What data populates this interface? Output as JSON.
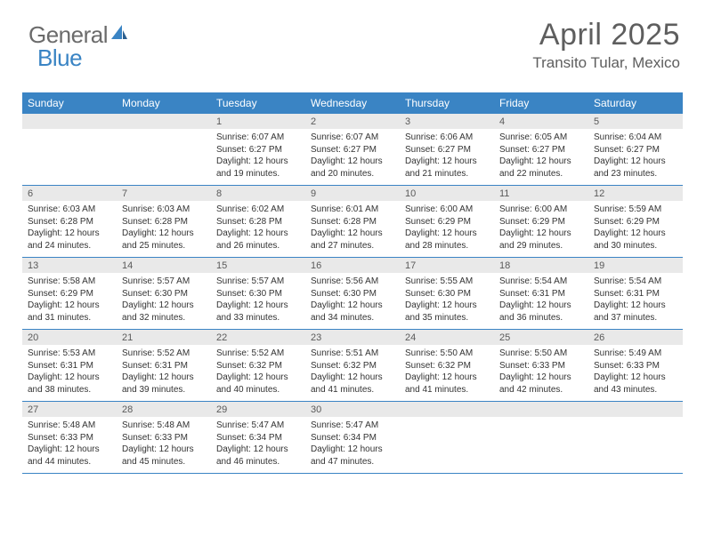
{
  "logo": {
    "text_a": "General",
    "text_b": "Blue"
  },
  "header": {
    "month_title": "April 2025",
    "location": "Transito Tular, Mexico"
  },
  "colors": {
    "brand_blue": "#3a84c4",
    "header_text": "#ffffff",
    "day_strip_bg": "#e9e9e9",
    "body_text": "#333333",
    "muted_text": "#5e5e5e",
    "logo_grey": "#6b6b6b"
  },
  "calendar": {
    "weekdays": [
      "Sunday",
      "Monday",
      "Tuesday",
      "Wednesday",
      "Thursday",
      "Friday",
      "Saturday"
    ],
    "fontsize_daynum": 11,
    "fontsize_body": 10,
    "weeks": [
      [
        null,
        null,
        {
          "day": "1",
          "sunrise": "Sunrise: 6:07 AM",
          "sunset": "Sunset: 6:27 PM",
          "daylight": "Daylight: 12 hours and 19 minutes."
        },
        {
          "day": "2",
          "sunrise": "Sunrise: 6:07 AM",
          "sunset": "Sunset: 6:27 PM",
          "daylight": "Daylight: 12 hours and 20 minutes."
        },
        {
          "day": "3",
          "sunrise": "Sunrise: 6:06 AM",
          "sunset": "Sunset: 6:27 PM",
          "daylight": "Daylight: 12 hours and 21 minutes."
        },
        {
          "day": "4",
          "sunrise": "Sunrise: 6:05 AM",
          "sunset": "Sunset: 6:27 PM",
          "daylight": "Daylight: 12 hours and 22 minutes."
        },
        {
          "day": "5",
          "sunrise": "Sunrise: 6:04 AM",
          "sunset": "Sunset: 6:27 PM",
          "daylight": "Daylight: 12 hours and 23 minutes."
        }
      ],
      [
        {
          "day": "6",
          "sunrise": "Sunrise: 6:03 AM",
          "sunset": "Sunset: 6:28 PM",
          "daylight": "Daylight: 12 hours and 24 minutes."
        },
        {
          "day": "7",
          "sunrise": "Sunrise: 6:03 AM",
          "sunset": "Sunset: 6:28 PM",
          "daylight": "Daylight: 12 hours and 25 minutes."
        },
        {
          "day": "8",
          "sunrise": "Sunrise: 6:02 AM",
          "sunset": "Sunset: 6:28 PM",
          "daylight": "Daylight: 12 hours and 26 minutes."
        },
        {
          "day": "9",
          "sunrise": "Sunrise: 6:01 AM",
          "sunset": "Sunset: 6:28 PM",
          "daylight": "Daylight: 12 hours and 27 minutes."
        },
        {
          "day": "10",
          "sunrise": "Sunrise: 6:00 AM",
          "sunset": "Sunset: 6:29 PM",
          "daylight": "Daylight: 12 hours and 28 minutes."
        },
        {
          "day": "11",
          "sunrise": "Sunrise: 6:00 AM",
          "sunset": "Sunset: 6:29 PM",
          "daylight": "Daylight: 12 hours and 29 minutes."
        },
        {
          "day": "12",
          "sunrise": "Sunrise: 5:59 AM",
          "sunset": "Sunset: 6:29 PM",
          "daylight": "Daylight: 12 hours and 30 minutes."
        }
      ],
      [
        {
          "day": "13",
          "sunrise": "Sunrise: 5:58 AM",
          "sunset": "Sunset: 6:29 PM",
          "daylight": "Daylight: 12 hours and 31 minutes."
        },
        {
          "day": "14",
          "sunrise": "Sunrise: 5:57 AM",
          "sunset": "Sunset: 6:30 PM",
          "daylight": "Daylight: 12 hours and 32 minutes."
        },
        {
          "day": "15",
          "sunrise": "Sunrise: 5:57 AM",
          "sunset": "Sunset: 6:30 PM",
          "daylight": "Daylight: 12 hours and 33 minutes."
        },
        {
          "day": "16",
          "sunrise": "Sunrise: 5:56 AM",
          "sunset": "Sunset: 6:30 PM",
          "daylight": "Daylight: 12 hours and 34 minutes."
        },
        {
          "day": "17",
          "sunrise": "Sunrise: 5:55 AM",
          "sunset": "Sunset: 6:30 PM",
          "daylight": "Daylight: 12 hours and 35 minutes."
        },
        {
          "day": "18",
          "sunrise": "Sunrise: 5:54 AM",
          "sunset": "Sunset: 6:31 PM",
          "daylight": "Daylight: 12 hours and 36 minutes."
        },
        {
          "day": "19",
          "sunrise": "Sunrise: 5:54 AM",
          "sunset": "Sunset: 6:31 PM",
          "daylight": "Daylight: 12 hours and 37 minutes."
        }
      ],
      [
        {
          "day": "20",
          "sunrise": "Sunrise: 5:53 AM",
          "sunset": "Sunset: 6:31 PM",
          "daylight": "Daylight: 12 hours and 38 minutes."
        },
        {
          "day": "21",
          "sunrise": "Sunrise: 5:52 AM",
          "sunset": "Sunset: 6:31 PM",
          "daylight": "Daylight: 12 hours and 39 minutes."
        },
        {
          "day": "22",
          "sunrise": "Sunrise: 5:52 AM",
          "sunset": "Sunset: 6:32 PM",
          "daylight": "Daylight: 12 hours and 40 minutes."
        },
        {
          "day": "23",
          "sunrise": "Sunrise: 5:51 AM",
          "sunset": "Sunset: 6:32 PM",
          "daylight": "Daylight: 12 hours and 41 minutes."
        },
        {
          "day": "24",
          "sunrise": "Sunrise: 5:50 AM",
          "sunset": "Sunset: 6:32 PM",
          "daylight": "Daylight: 12 hours and 41 minutes."
        },
        {
          "day": "25",
          "sunrise": "Sunrise: 5:50 AM",
          "sunset": "Sunset: 6:33 PM",
          "daylight": "Daylight: 12 hours and 42 minutes."
        },
        {
          "day": "26",
          "sunrise": "Sunrise: 5:49 AM",
          "sunset": "Sunset: 6:33 PM",
          "daylight": "Daylight: 12 hours and 43 minutes."
        }
      ],
      [
        {
          "day": "27",
          "sunrise": "Sunrise: 5:48 AM",
          "sunset": "Sunset: 6:33 PM",
          "daylight": "Daylight: 12 hours and 44 minutes."
        },
        {
          "day": "28",
          "sunrise": "Sunrise: 5:48 AM",
          "sunset": "Sunset: 6:33 PM",
          "daylight": "Daylight: 12 hours and 45 minutes."
        },
        {
          "day": "29",
          "sunrise": "Sunrise: 5:47 AM",
          "sunset": "Sunset: 6:34 PM",
          "daylight": "Daylight: 12 hours and 46 minutes."
        },
        {
          "day": "30",
          "sunrise": "Sunrise: 5:47 AM",
          "sunset": "Sunset: 6:34 PM",
          "daylight": "Daylight: 12 hours and 47 minutes."
        },
        null,
        null,
        null
      ]
    ]
  }
}
